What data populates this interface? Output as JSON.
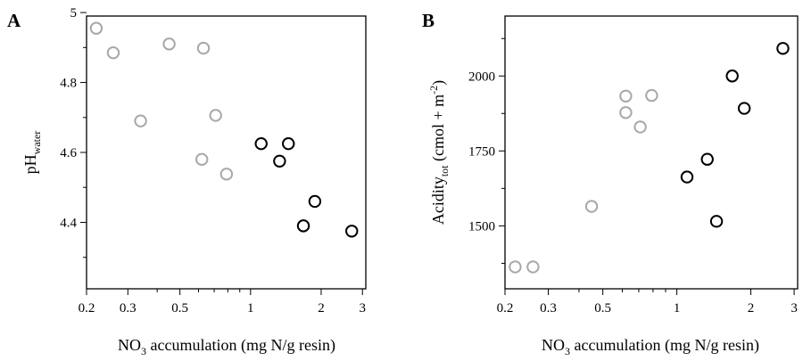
{
  "figure": {
    "panels": [
      {
        "letter": "A"
      },
      {
        "letter": "B"
      }
    ]
  },
  "colors": {
    "gray_points": "#a8a8a8",
    "black_points": "#000000",
    "axes": "#000000"
  },
  "chart_data": [
    {
      "panel": "A",
      "type": "scatter",
      "x_scale": "log",
      "xlim": [
        0.2,
        3.1
      ],
      "ylim": [
        4.21,
        4.99
      ],
      "xlabel": {
        "pre": "NO",
        "sub": "3",
        "post": " accumulation (mg N/g resin)"
      },
      "ylabel": {
        "pre": "pH",
        "sub": "water",
        "post": ""
      },
      "x_ticks": [
        "0.2",
        "0.3",
        "0.5",
        "1",
        "2",
        "3"
      ],
      "x_tick_values": [
        0.2,
        0.3,
        0.5,
        1,
        2,
        3
      ],
      "y_ticks": [
        "4.4",
        "4.6",
        "4.8",
        "5"
      ],
      "y_tick_values": [
        4.4,
        4.6,
        4.8,
        5.0
      ],
      "grid": false,
      "series": [
        {
          "color": "#a8a8a8",
          "points": [
            {
              "x": 0.22,
              "y": 4.955
            },
            {
              "x": 0.26,
              "y": 4.885
            },
            {
              "x": 0.34,
              "y": 4.69
            },
            {
              "x": 0.45,
              "y": 4.91
            },
            {
              "x": 0.62,
              "y": 4.58
            },
            {
              "x": 0.63,
              "y": 4.898
            },
            {
              "x": 0.71,
              "y": 4.706
            },
            {
              "x": 0.79,
              "y": 4.538
            }
          ]
        },
        {
          "color": "#000000",
          "points": [
            {
              "x": 1.11,
              "y": 4.625
            },
            {
              "x": 1.33,
              "y": 4.575
            },
            {
              "x": 1.45,
              "y": 4.625
            },
            {
              "x": 1.68,
              "y": 4.39
            },
            {
              "x": 1.88,
              "y": 4.46
            },
            {
              "x": 2.7,
              "y": 4.375
            }
          ]
        }
      ]
    },
    {
      "panel": "B",
      "type": "scatter",
      "x_scale": "log",
      "xlim": [
        0.2,
        3.1
      ],
      "ylim": [
        1290,
        2200
      ],
      "xlabel": {
        "pre": "NO",
        "sub": "3",
        "post": " accumulation (mg N/g resin)"
      },
      "ylabel": {
        "pre": "Acidity",
        "sub": "tot",
        "post": " (cmol + m",
        "sup": "-2",
        "post2": ")"
      },
      "x_ticks": [
        "0.2",
        "0.3",
        "0.5",
        "1",
        "2",
        "3"
      ],
      "x_tick_values": [
        0.2,
        0.3,
        0.5,
        1,
        2,
        3
      ],
      "y_ticks": [
        "1500",
        "1750",
        "2000"
      ],
      "y_tick_values": [
        1500,
        1750,
        2000
      ],
      "grid": false,
      "series": [
        {
          "color": "#a8a8a8",
          "points": [
            {
              "x": 0.22,
              "y": 1363
            },
            {
              "x": 0.26,
              "y": 1363
            },
            {
              "x": 0.45,
              "y": 1565
            },
            {
              "x": 0.62,
              "y": 1933
            },
            {
              "x": 0.62,
              "y": 1878
            },
            {
              "x": 0.71,
              "y": 1830
            },
            {
              "x": 0.79,
              "y": 1935
            }
          ]
        },
        {
          "color": "#000000",
          "points": [
            {
              "x": 1.1,
              "y": 1663
            },
            {
              "x": 1.33,
              "y": 1722
            },
            {
              "x": 1.45,
              "y": 1515
            },
            {
              "x": 1.68,
              "y": 2000
            },
            {
              "x": 1.88,
              "y": 1892
            },
            {
              "x": 2.7,
              "y": 2092
            }
          ]
        }
      ]
    }
  ]
}
